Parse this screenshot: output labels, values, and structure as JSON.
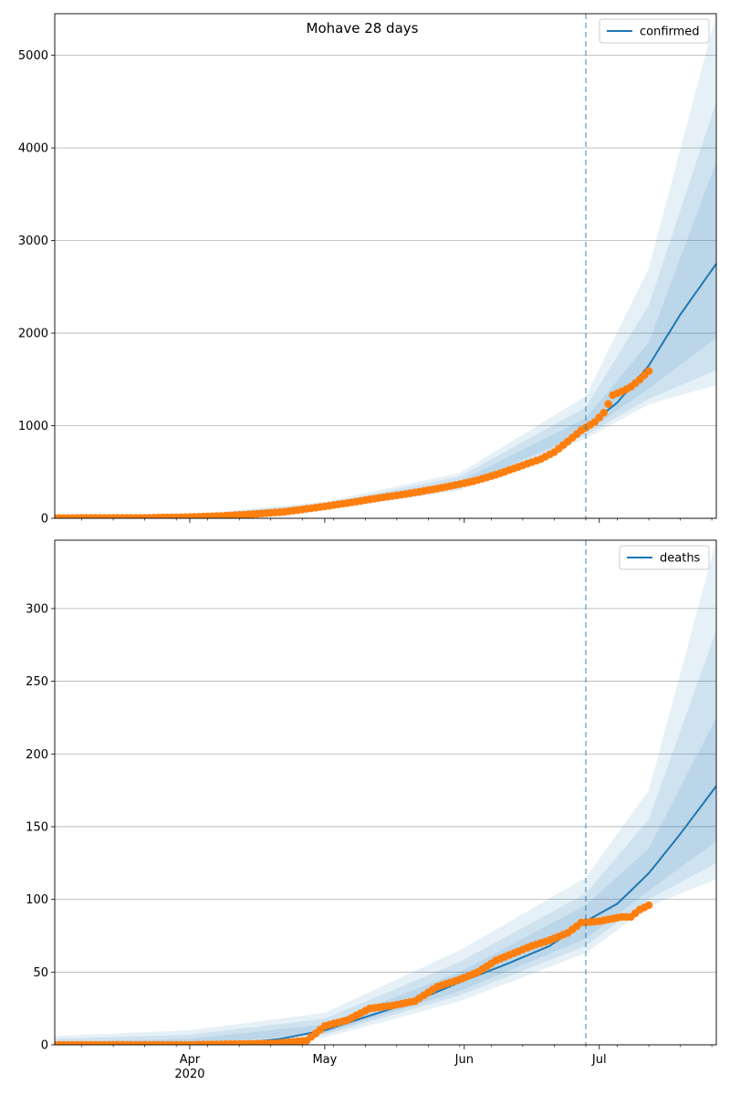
{
  "figure": {
    "title": "Mohave 28 days"
  },
  "chart_data": [
    {
      "type": "line",
      "title": "Mohave 28 days",
      "xlabel": "",
      "ylabel": "",
      "xlim": [
        "2020-03-02",
        "2020-07-27"
      ],
      "ylim": [
        0,
        5450
      ],
      "yticks": [
        0,
        1000,
        2000,
        3000,
        4000,
        5000
      ],
      "grid": true,
      "legend_location": "upper right",
      "colors": {
        "model": "#1f77b4",
        "observed": "#ff7f0e",
        "band": "#1f77b4"
      },
      "forecast_start": "2020-06-28",
      "series": [
        {
          "name": "confirmed",
          "kind": "model",
          "x": [
            "2020-03-02",
            "2020-03-12",
            "2020-03-22",
            "2020-04-01",
            "2020-04-11",
            "2020-04-21",
            "2020-05-01",
            "2020-05-11",
            "2020-05-21",
            "2020-05-31",
            "2020-06-10",
            "2020-06-20",
            "2020-06-28",
            "2020-07-05",
            "2020-07-12",
            "2020-07-19",
            "2020-07-27"
          ],
          "y": [
            5,
            8,
            12,
            20,
            40,
            70,
            125,
            190,
            270,
            360,
            490,
            700,
            980,
            1250,
            1650,
            2200,
            2750
          ]
        },
        {
          "kind": "observed",
          "x": [
            "2020-03-02",
            "2020-03-12",
            "2020-03-22",
            "2020-04-01",
            "2020-04-08",
            "2020-04-15",
            "2020-04-22",
            "2020-04-29",
            "2020-05-06",
            "2020-05-13",
            "2020-05-20",
            "2020-05-27",
            "2020-06-03",
            "2020-06-08",
            "2020-06-13",
            "2020-06-18",
            "2020-06-21",
            "2020-06-24",
            "2020-06-27",
            "2020-06-30",
            "2020-07-02",
            "2020-07-04",
            "2020-07-06",
            "2020-07-08",
            "2020-07-10",
            "2020-07-12"
          ],
          "y": [
            3,
            4,
            5,
            14,
            25,
            45,
            70,
            115,
            165,
            220,
            270,
            330,
            400,
            470,
            555,
            640,
            715,
            830,
            950,
            1040,
            1140,
            1330,
            1370,
            1420,
            1500,
            1590
          ]
        }
      ],
      "bands": [
        {
          "x": [
            "2020-03-02",
            "2020-04-01",
            "2020-05-01",
            "2020-05-31",
            "2020-06-28",
            "2020-07-12",
            "2020-07-27"
          ],
          "lower": [
            0,
            5,
            95,
            300,
            860,
            1230,
            1440
          ],
          "upper": [
            20,
            40,
            180,
            490,
            1320,
            2700,
            5450
          ]
        },
        {
          "x": [
            "2020-03-02",
            "2020-04-01",
            "2020-05-01",
            "2020-05-31",
            "2020-06-28",
            "2020-07-12",
            "2020-07-27"
          ],
          "lower": [
            1,
            8,
            105,
            320,
            900,
            1290,
            1600
          ],
          "upper": [
            15,
            32,
            160,
            450,
            1200,
            2300,
            4500
          ]
        },
        {
          "x": [
            "2020-03-02",
            "2020-04-01",
            "2020-05-01",
            "2020-05-31",
            "2020-06-28",
            "2020-07-12",
            "2020-07-27"
          ],
          "lower": [
            2,
            12,
            115,
            335,
            930,
            1400,
            1950
          ],
          "upper": [
            10,
            26,
            140,
            400,
            1080,
            1900,
            3850
          ]
        }
      ]
    },
    {
      "type": "line",
      "xlabel": "",
      "ylabel": "",
      "xlim": [
        "2020-03-02",
        "2020-07-27"
      ],
      "ylim": [
        0,
        347
      ],
      "yticks": [
        0,
        50,
        100,
        150,
        200,
        250,
        300
      ],
      "xticks": [
        {
          "date": "2020-04-01",
          "label": "Apr",
          "sublabel": "2020"
        },
        {
          "date": "2020-05-01",
          "label": "May"
        },
        {
          "date": "2020-06-01",
          "label": "Jun"
        },
        {
          "date": "2020-07-01",
          "label": "Jul"
        }
      ],
      "grid": true,
      "legend_location": "upper right",
      "colors": {
        "model": "#1f77b4",
        "observed": "#ff7f0e",
        "band": "#1f77b4"
      },
      "forecast_start": "2020-06-28",
      "series": [
        {
          "name": "deaths",
          "kind": "model",
          "x": [
            "2020-03-02",
            "2020-03-22",
            "2020-04-11",
            "2020-04-21",
            "2020-05-01",
            "2020-05-11",
            "2020-05-21",
            "2020-05-31",
            "2020-06-10",
            "2020-06-20",
            "2020-06-28",
            "2020-07-05",
            "2020-07-12",
            "2020-07-19",
            "2020-07-27"
          ],
          "y": [
            0,
            0,
            1,
            4,
            10,
            20,
            30,
            43,
            55,
            68,
            85,
            97,
            118,
            145,
            178
          ]
        },
        {
          "kind": "observed",
          "x": [
            "2020-03-02",
            "2020-04-01",
            "2020-04-20",
            "2020-04-27",
            "2020-04-29",
            "2020-05-01",
            "2020-05-06",
            "2020-05-11",
            "2020-05-16",
            "2020-05-21",
            "2020-05-26",
            "2020-05-31",
            "2020-06-04",
            "2020-06-08",
            "2020-06-12",
            "2020-06-16",
            "2020-06-20",
            "2020-06-24",
            "2020-06-27",
            "2020-07-01",
            "2020-07-06",
            "2020-07-08",
            "2020-07-10",
            "2020-07-12"
          ],
          "y": [
            0,
            0,
            1,
            3,
            8,
            13,
            17,
            25,
            27,
            30,
            40,
            45,
            50,
            58,
            63,
            68,
            72,
            77,
            84,
            85,
            88,
            88,
            93,
            96
          ]
        }
      ],
      "bands": [
        {
          "x": [
            "2020-03-02",
            "2020-04-01",
            "2020-05-01",
            "2020-05-31",
            "2020-06-28",
            "2020-07-12",
            "2020-07-27"
          ],
          "lower": [
            0,
            0,
            5,
            30,
            63,
            95,
            114
          ],
          "upper": [
            6,
            10,
            22,
            65,
            115,
            175,
            347
          ]
        },
        {
          "x": [
            "2020-03-02",
            "2020-04-01",
            "2020-05-01",
            "2020-05-31",
            "2020-06-28",
            "2020-07-12",
            "2020-07-27"
          ],
          "lower": [
            0,
            0,
            7,
            34,
            68,
            100,
            125
          ],
          "upper": [
            4,
            7,
            18,
            57,
            104,
            155,
            285
          ]
        },
        {
          "x": [
            "2020-03-02",
            "2020-04-01",
            "2020-05-01",
            "2020-05-31",
            "2020-06-28",
            "2020-07-12",
            "2020-07-27"
          ],
          "lower": [
            0,
            0,
            8,
            37,
            73,
            106,
            140
          ],
          "upper": [
            2,
            4,
            14,
            50,
            96,
            135,
            225
          ]
        }
      ]
    }
  ]
}
